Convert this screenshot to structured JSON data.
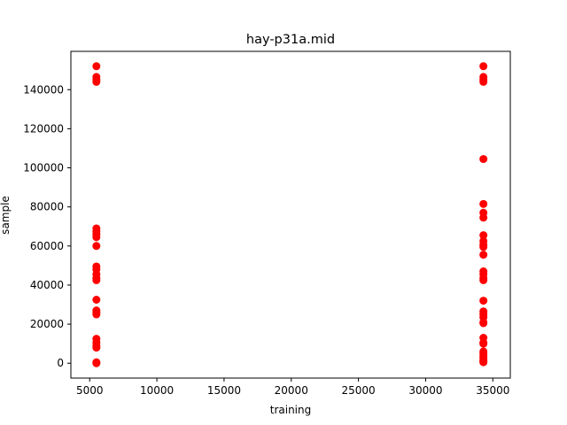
{
  "chart_data": {
    "type": "scatter",
    "title": "hay-p31a.mid",
    "xlabel": "training",
    "ylabel": "sample",
    "xlim": [
      3600,
      36300
    ],
    "ylim": [
      -7600,
      159600
    ],
    "xticks": [
      5000,
      10000,
      15000,
      20000,
      25000,
      30000,
      35000
    ],
    "yticks": [
      0,
      20000,
      40000,
      60000,
      80000,
      100000,
      120000,
      140000
    ],
    "grid": false,
    "marker_color": "#ff0000",
    "series": [
      {
        "x": [
          5500,
          5500,
          5500,
          5500,
          5500,
          5500,
          5500,
          5500,
          5500,
          5500,
          5500,
          5500,
          5500,
          5500,
          5500,
          5500,
          5500,
          5500,
          5500,
          5500,
          5500,
          5500,
          5500,
          5500,
          34300,
          34300,
          34300,
          34300,
          34300,
          34300,
          34300,
          34300,
          34300,
          34300,
          34300,
          34300,
          34300,
          34300,
          34300,
          34300,
          34300,
          34300,
          34300,
          34300,
          34300,
          34300,
          34300,
          34300,
          34300,
          34300,
          34300,
          34300,
          34300,
          34300,
          34300,
          34300,
          34300
        ],
        "y": [
          152000,
          146500,
          145000,
          144000,
          69000,
          67500,
          66000,
          64500,
          60000,
          49500,
          48000,
          45500,
          43500,
          42500,
          32500,
          27000,
          26000,
          25000,
          12500,
          10500,
          9000,
          8000,
          500,
          0,
          152000,
          146500,
          145000,
          144000,
          104500,
          81500,
          77000,
          74500,
          65500,
          62500,
          60500,
          59500,
          55500,
          47000,
          45500,
          43500,
          42500,
          32000,
          26500,
          25000,
          23500,
          21000,
          20500,
          13000,
          10500,
          10000,
          6000,
          5000,
          3500,
          2500,
          1500,
          1000,
          500
        ]
      }
    ]
  }
}
